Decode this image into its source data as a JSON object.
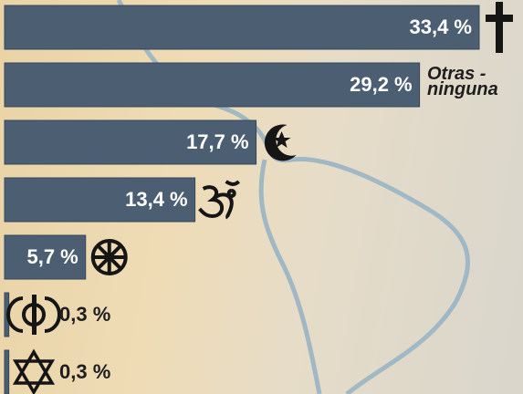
{
  "chart_data": {
    "type": "bar",
    "categories": [
      null,
      "Otras - ninguna",
      null,
      null,
      null,
      null,
      null
    ],
    "values": [
      33.4,
      29.2,
      17.7,
      13.4,
      5.7,
      0.3,
      0.3
    ],
    "value_labels": [
      "33,4 %",
      "29,2 %",
      "17,7 %",
      "13,4 %",
      "5,7 %",
      "0,3 %",
      "0,3 %"
    ],
    "color": "#4b5e72"
  }
}
